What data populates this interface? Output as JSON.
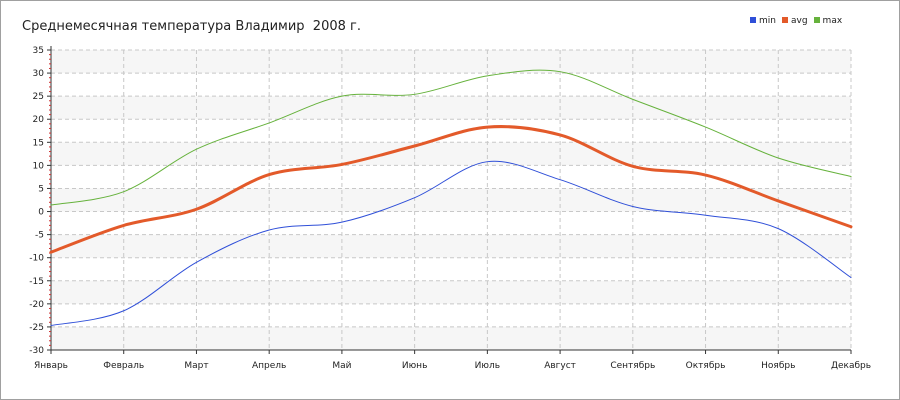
{
  "chart_data": {
    "type": "line",
    "title": "Среднемесячная температура Владимир  2008 г.",
    "xlabel": "",
    "ylabel": "",
    "categories": [
      "Январь",
      "Февраль",
      "Март",
      "Апрель",
      "Май",
      "Июнь",
      "Июль",
      "Август",
      "Сентябрь",
      "Октябрь",
      "Ноябрь",
      "Декабрь"
    ],
    "ylim": [
      -30,
      35
    ],
    "yticks": [
      -30,
      -25,
      -20,
      -15,
      -10,
      -5,
      0,
      5,
      10,
      15,
      20,
      25,
      30,
      35
    ],
    "grid": true,
    "legend_position": "top-right",
    "series": [
      {
        "name": "min",
        "color": "#2f4fd8",
        "width": 1,
        "values": [
          -24.7,
          -21.5,
          -11,
          -4,
          -2.3,
          3,
          10.8,
          6.9,
          1.1,
          -0.8,
          -3.7,
          -14.3
        ]
      },
      {
        "name": "avg",
        "color": "#e35a2a",
        "width": 3,
        "values": [
          -8.8,
          -3,
          0.5,
          8,
          10.2,
          14.2,
          18.3,
          16.6,
          9.8,
          7.9,
          2.3,
          -3.3
        ]
      },
      {
        "name": "max",
        "color": "#66b23c",
        "width": 1,
        "values": [
          1.4,
          4.3,
          13.5,
          19.2,
          25,
          25.4,
          29.4,
          30.3,
          24.3,
          18.3,
          11.6,
          7.6
        ]
      }
    ]
  }
}
